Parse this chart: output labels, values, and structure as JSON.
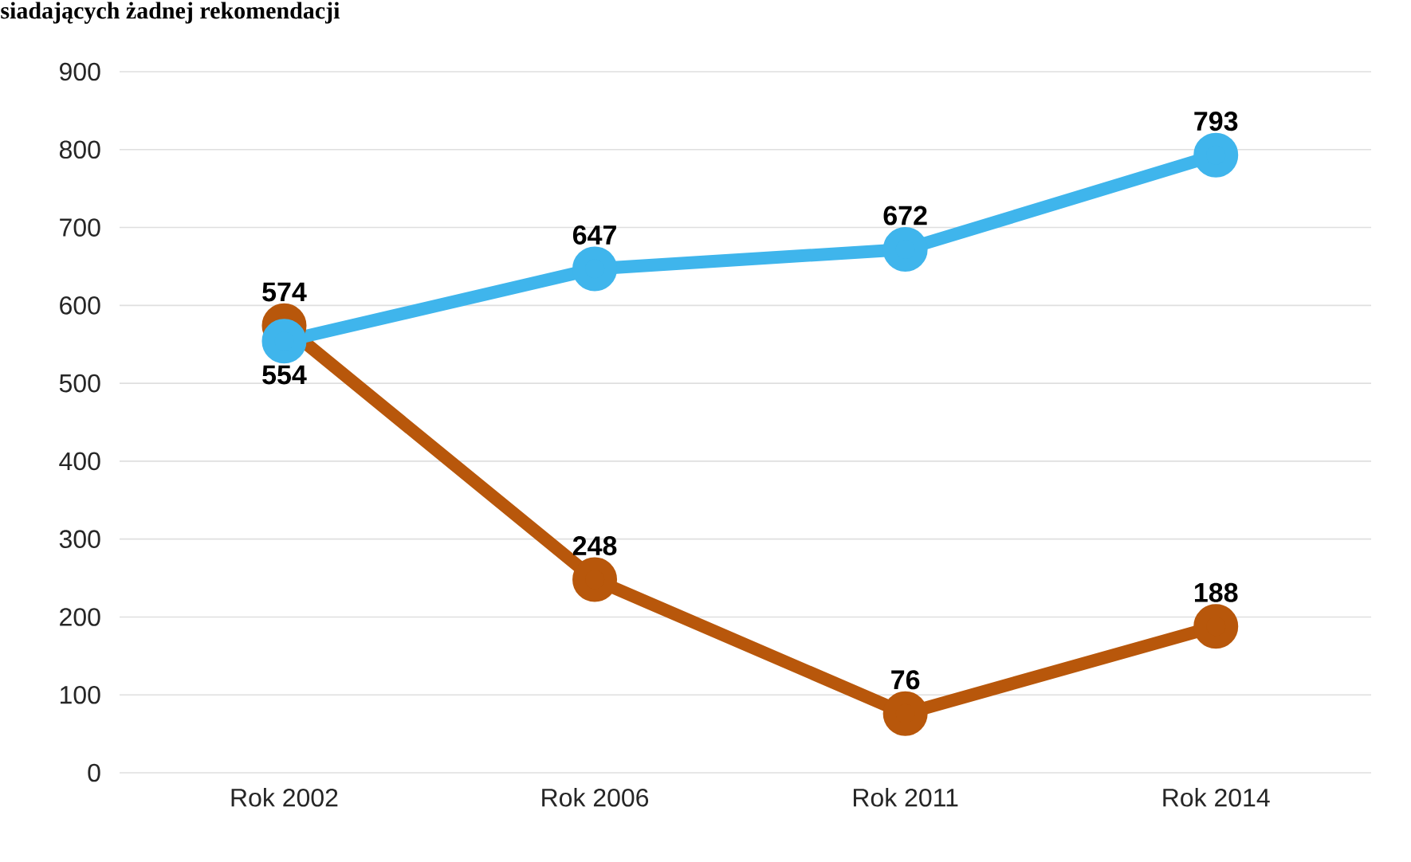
{
  "chart_data": {
    "type": "line",
    "title": "siadających żadnej rekomendacji",
    "categories": [
      "Rok 2002",
      "Rok 2006",
      "Rok 2011",
      "Rok 2014"
    ],
    "series": [
      {
        "color": "#3fb5ec",
        "values": [
          554,
          647,
          672,
          793
        ]
      },
      {
        "color": "#b8570b",
        "values": [
          574,
          248,
          76,
          188
        ]
      }
    ],
    "ylim": [
      0,
      900
    ],
    "yticks": [
      0,
      100,
      200,
      300,
      400,
      500,
      600,
      700,
      800,
      900
    ],
    "grid": "y",
    "marker": "circle",
    "line_style": "solid",
    "data_labels": true
  }
}
